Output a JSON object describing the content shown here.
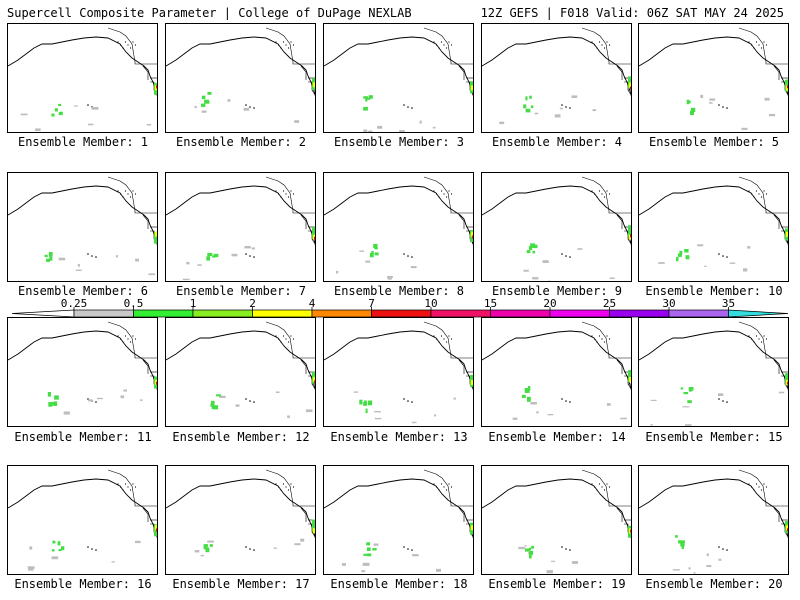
{
  "header": {
    "title": "Supercell Composite Parameter | College of DuPage NEXLAB",
    "run_info": "12Z GEFS | F018 Valid: 06Z SAT MAY 24 2025"
  },
  "panel_label_prefix": "Ensemble Member:",
  "members": [
    {
      "label": "Ensemble Member: 1",
      "id": 1
    },
    {
      "label": "Ensemble Member: 2",
      "id": 2
    },
    {
      "label": "Ensemble Member: 3",
      "id": 3
    },
    {
      "label": "Ensemble Member: 4",
      "id": 4
    },
    {
      "label": "Ensemble Member: 5",
      "id": 5
    },
    {
      "label": "Ensemble Member: 6",
      "id": 6
    },
    {
      "label": "Ensemble Member: 7",
      "id": 7
    },
    {
      "label": "Ensemble Member: 8",
      "id": 8
    },
    {
      "label": "Ensemble Member: 9",
      "id": 9
    },
    {
      "label": "Ensemble Member: 10",
      "id": 10
    },
    {
      "label": "Ensemble Member: 11",
      "id": 11
    },
    {
      "label": "Ensemble Member: 12",
      "id": 12
    },
    {
      "label": "Ensemble Member: 13",
      "id": 13
    },
    {
      "label": "Ensemble Member: 14",
      "id": 14
    },
    {
      "label": "Ensemble Member: 15",
      "id": 15
    },
    {
      "label": "Ensemble Member: 16",
      "id": 16
    },
    {
      "label": "Ensemble Member: 17",
      "id": 17
    },
    {
      "label": "Ensemble Member: 18",
      "id": 18
    },
    {
      "label": "Ensemble Member: 19",
      "id": 19
    },
    {
      "label": "Ensemble Member: 20",
      "id": 20
    }
  ],
  "colorbar": {
    "ticks": [
      "0.25",
      "0.5",
      "1",
      "2",
      "4",
      "7",
      "10",
      "15",
      "20",
      "25",
      "30",
      "35"
    ],
    "colors": [
      "#ffffff",
      "#c8c8c8",
      "#33ee33",
      "#88ee22",
      "#ffff00",
      "#ff8800",
      "#ee1111",
      "#ee1166",
      "#ee00aa",
      "#ee00ee",
      "#9900ee",
      "#aa66ee",
      "#33dddd"
    ]
  },
  "map_colors": {
    "outline": "#000000",
    "gray_field": "#bdbdbd",
    "green_field": "#44dd44",
    "yellow_field": "#ffff00",
    "red_field": "#ee1111"
  }
}
